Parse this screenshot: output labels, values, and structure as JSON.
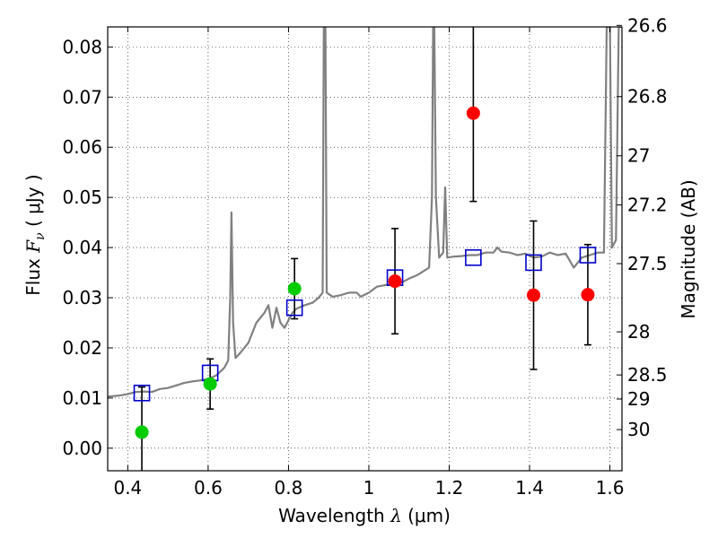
{
  "chart_data": {
    "type": "scatter",
    "xlabel_text": "Wavelength  ",
    "xlabel_sym": "λ",
    "xlabel_unit": " (μm)",
    "ylabel_text": "Flux  ",
    "ylabel_sym": "F",
    "ylabel_sub": "ν",
    "ylabel_unit": "  ( μJy )",
    "y2label": "Magnitude (AB)",
    "xlim": [
      0.35,
      1.63
    ],
    "ylim": [
      -0.0045,
      0.084
    ],
    "grid": true,
    "x_ticks": [
      0.4,
      0.6,
      0.8,
      1.0,
      1.2,
      1.4,
      1.6
    ],
    "x_tick_labels": [
      "0.4",
      "0.6",
      "0.8",
      "1",
      "1.2",
      "1.4",
      "1.6"
    ],
    "y_ticks": [
      0.0,
      0.01,
      0.02,
      0.03,
      0.04,
      0.05,
      0.06,
      0.07,
      0.08
    ],
    "y_tick_labels": [
      "0.00",
      "0.01",
      "0.02",
      "0.03",
      "0.04",
      "0.05",
      "0.06",
      "0.07",
      "0.08"
    ],
    "y2_ticks": [
      {
        "label": "26.6",
        "flux": 0.0843
      },
      {
        "label": "26.8",
        "flux": 0.0701
      },
      {
        "label": "27",
        "flux": 0.0583
      },
      {
        "label": "27.2",
        "flux": 0.0485
      },
      {
        "label": "27.5",
        "flux": 0.0368
      },
      {
        "label": "28",
        "flux": 0.0232
      },
      {
        "label": "28.5",
        "flux": 0.0146
      },
      {
        "label": "29",
        "flux": 0.0098
      },
      {
        "label": "30",
        "flux": 0.0037
      }
    ],
    "colors": {
      "spectrum": "#808080",
      "model": "#0000cc",
      "green": "#00cc00",
      "red": "#ff0000",
      "errorbar": "#000000"
    },
    "spectrum": [
      [
        0.35,
        0.0103
      ],
      [
        0.38,
        0.0105
      ],
      [
        0.4,
        0.0108
      ],
      [
        0.42,
        0.0112
      ],
      [
        0.44,
        0.0113
      ],
      [
        0.46,
        0.0112
      ],
      [
        0.48,
        0.0118
      ],
      [
        0.5,
        0.012
      ],
      [
        0.52,
        0.0125
      ],
      [
        0.54,
        0.013
      ],
      [
        0.56,
        0.0133
      ],
      [
        0.58,
        0.0135
      ],
      [
        0.6,
        0.0138
      ],
      [
        0.62,
        0.0145
      ],
      [
        0.64,
        0.016
      ],
      [
        0.65,
        0.0175
      ],
      [
        0.655,
        0.03
      ],
      [
        0.658,
        0.047
      ],
      [
        0.662,
        0.025
      ],
      [
        0.668,
        0.018
      ],
      [
        0.68,
        0.019
      ],
      [
        0.7,
        0.021
      ],
      [
        0.72,
        0.025
      ],
      [
        0.74,
        0.027
      ],
      [
        0.75,
        0.0285
      ],
      [
        0.76,
        0.024
      ],
      [
        0.77,
        0.028
      ],
      [
        0.78,
        0.025
      ],
      [
        0.79,
        0.024
      ],
      [
        0.8,
        0.0255
      ],
      [
        0.81,
        0.027
      ],
      [
        0.82,
        0.0278
      ],
      [
        0.84,
        0.0285
      ],
      [
        0.86,
        0.029
      ],
      [
        0.875,
        0.03
      ],
      [
        0.885,
        0.031
      ],
      [
        0.888,
        0.084
      ],
      [
        0.892,
        0.084
      ],
      [
        0.895,
        0.031
      ],
      [
        0.91,
        0.0302
      ],
      [
        0.93,
        0.0305
      ],
      [
        0.95,
        0.031
      ],
      [
        0.97,
        0.031
      ],
      [
        0.98,
        0.0302
      ],
      [
        1.0,
        0.031
      ],
      [
        1.02,
        0.0322
      ],
      [
        1.04,
        0.0325
      ],
      [
        1.06,
        0.0328
      ],
      [
        1.08,
        0.033
      ],
      [
        1.1,
        0.0338
      ],
      [
        1.12,
        0.0345
      ],
      [
        1.14,
        0.0355
      ],
      [
        1.15,
        0.036
      ],
      [
        1.157,
        0.05
      ],
      [
        1.16,
        0.084
      ],
      [
        1.163,
        0.084
      ],
      [
        1.167,
        0.05
      ],
      [
        1.175,
        0.038
      ],
      [
        1.185,
        0.039
      ],
      [
        1.19,
        0.052
      ],
      [
        1.195,
        0.038
      ],
      [
        1.21,
        0.0382
      ],
      [
        1.23,
        0.0383
      ],
      [
        1.25,
        0.0385
      ],
      [
        1.27,
        0.0385
      ],
      [
        1.29,
        0.039
      ],
      [
        1.31,
        0.039
      ],
      [
        1.32,
        0.04
      ],
      [
        1.33,
        0.0392
      ],
      [
        1.35,
        0.039
      ],
      [
        1.37,
        0.0385
      ],
      [
        1.39,
        0.0388
      ],
      [
        1.41,
        0.038
      ],
      [
        1.43,
        0.0382
      ],
      [
        1.45,
        0.039
      ],
      [
        1.47,
        0.0385
      ],
      [
        1.49,
        0.0388
      ],
      [
        1.51,
        0.036
      ],
      [
        1.53,
        0.038
      ],
      [
        1.55,
        0.0385
      ],
      [
        1.57,
        0.039
      ],
      [
        1.585,
        0.039
      ],
      [
        1.592,
        0.084
      ],
      [
        1.6,
        0.084
      ],
      [
        1.605,
        0.04
      ],
      [
        1.615,
        0.0415
      ],
      [
        1.622,
        0.084
      ],
      [
        1.63,
        0.084
      ]
    ],
    "model_points": [
      {
        "x": 0.435,
        "y": 0.011
      },
      {
        "x": 0.605,
        "y": 0.015
      },
      {
        "x": 0.815,
        "y": 0.028
      },
      {
        "x": 1.065,
        "y": 0.034
      },
      {
        "x": 1.26,
        "y": 0.038
      },
      {
        "x": 1.41,
        "y": 0.037
      },
      {
        "x": 1.545,
        "y": 0.0385
      }
    ],
    "observed_points": [
      {
        "x": 0.435,
        "y": 0.0032,
        "err": 0.009,
        "color": "green"
      },
      {
        "x": 0.605,
        "y": 0.0128,
        "err": 0.005,
        "color": "green"
      },
      {
        "x": 0.815,
        "y": 0.0318,
        "err": 0.006,
        "color": "green"
      },
      {
        "x": 1.065,
        "y": 0.0333,
        "err": 0.0105,
        "color": "red"
      },
      {
        "x": 1.26,
        "y": 0.0668,
        "err": 0.0176,
        "color": "red"
      },
      {
        "x": 1.41,
        "y": 0.0305,
        "err": 0.0148,
        "color": "red"
      },
      {
        "x": 1.545,
        "y": 0.0306,
        "err": 0.01,
        "color": "red"
      }
    ]
  }
}
